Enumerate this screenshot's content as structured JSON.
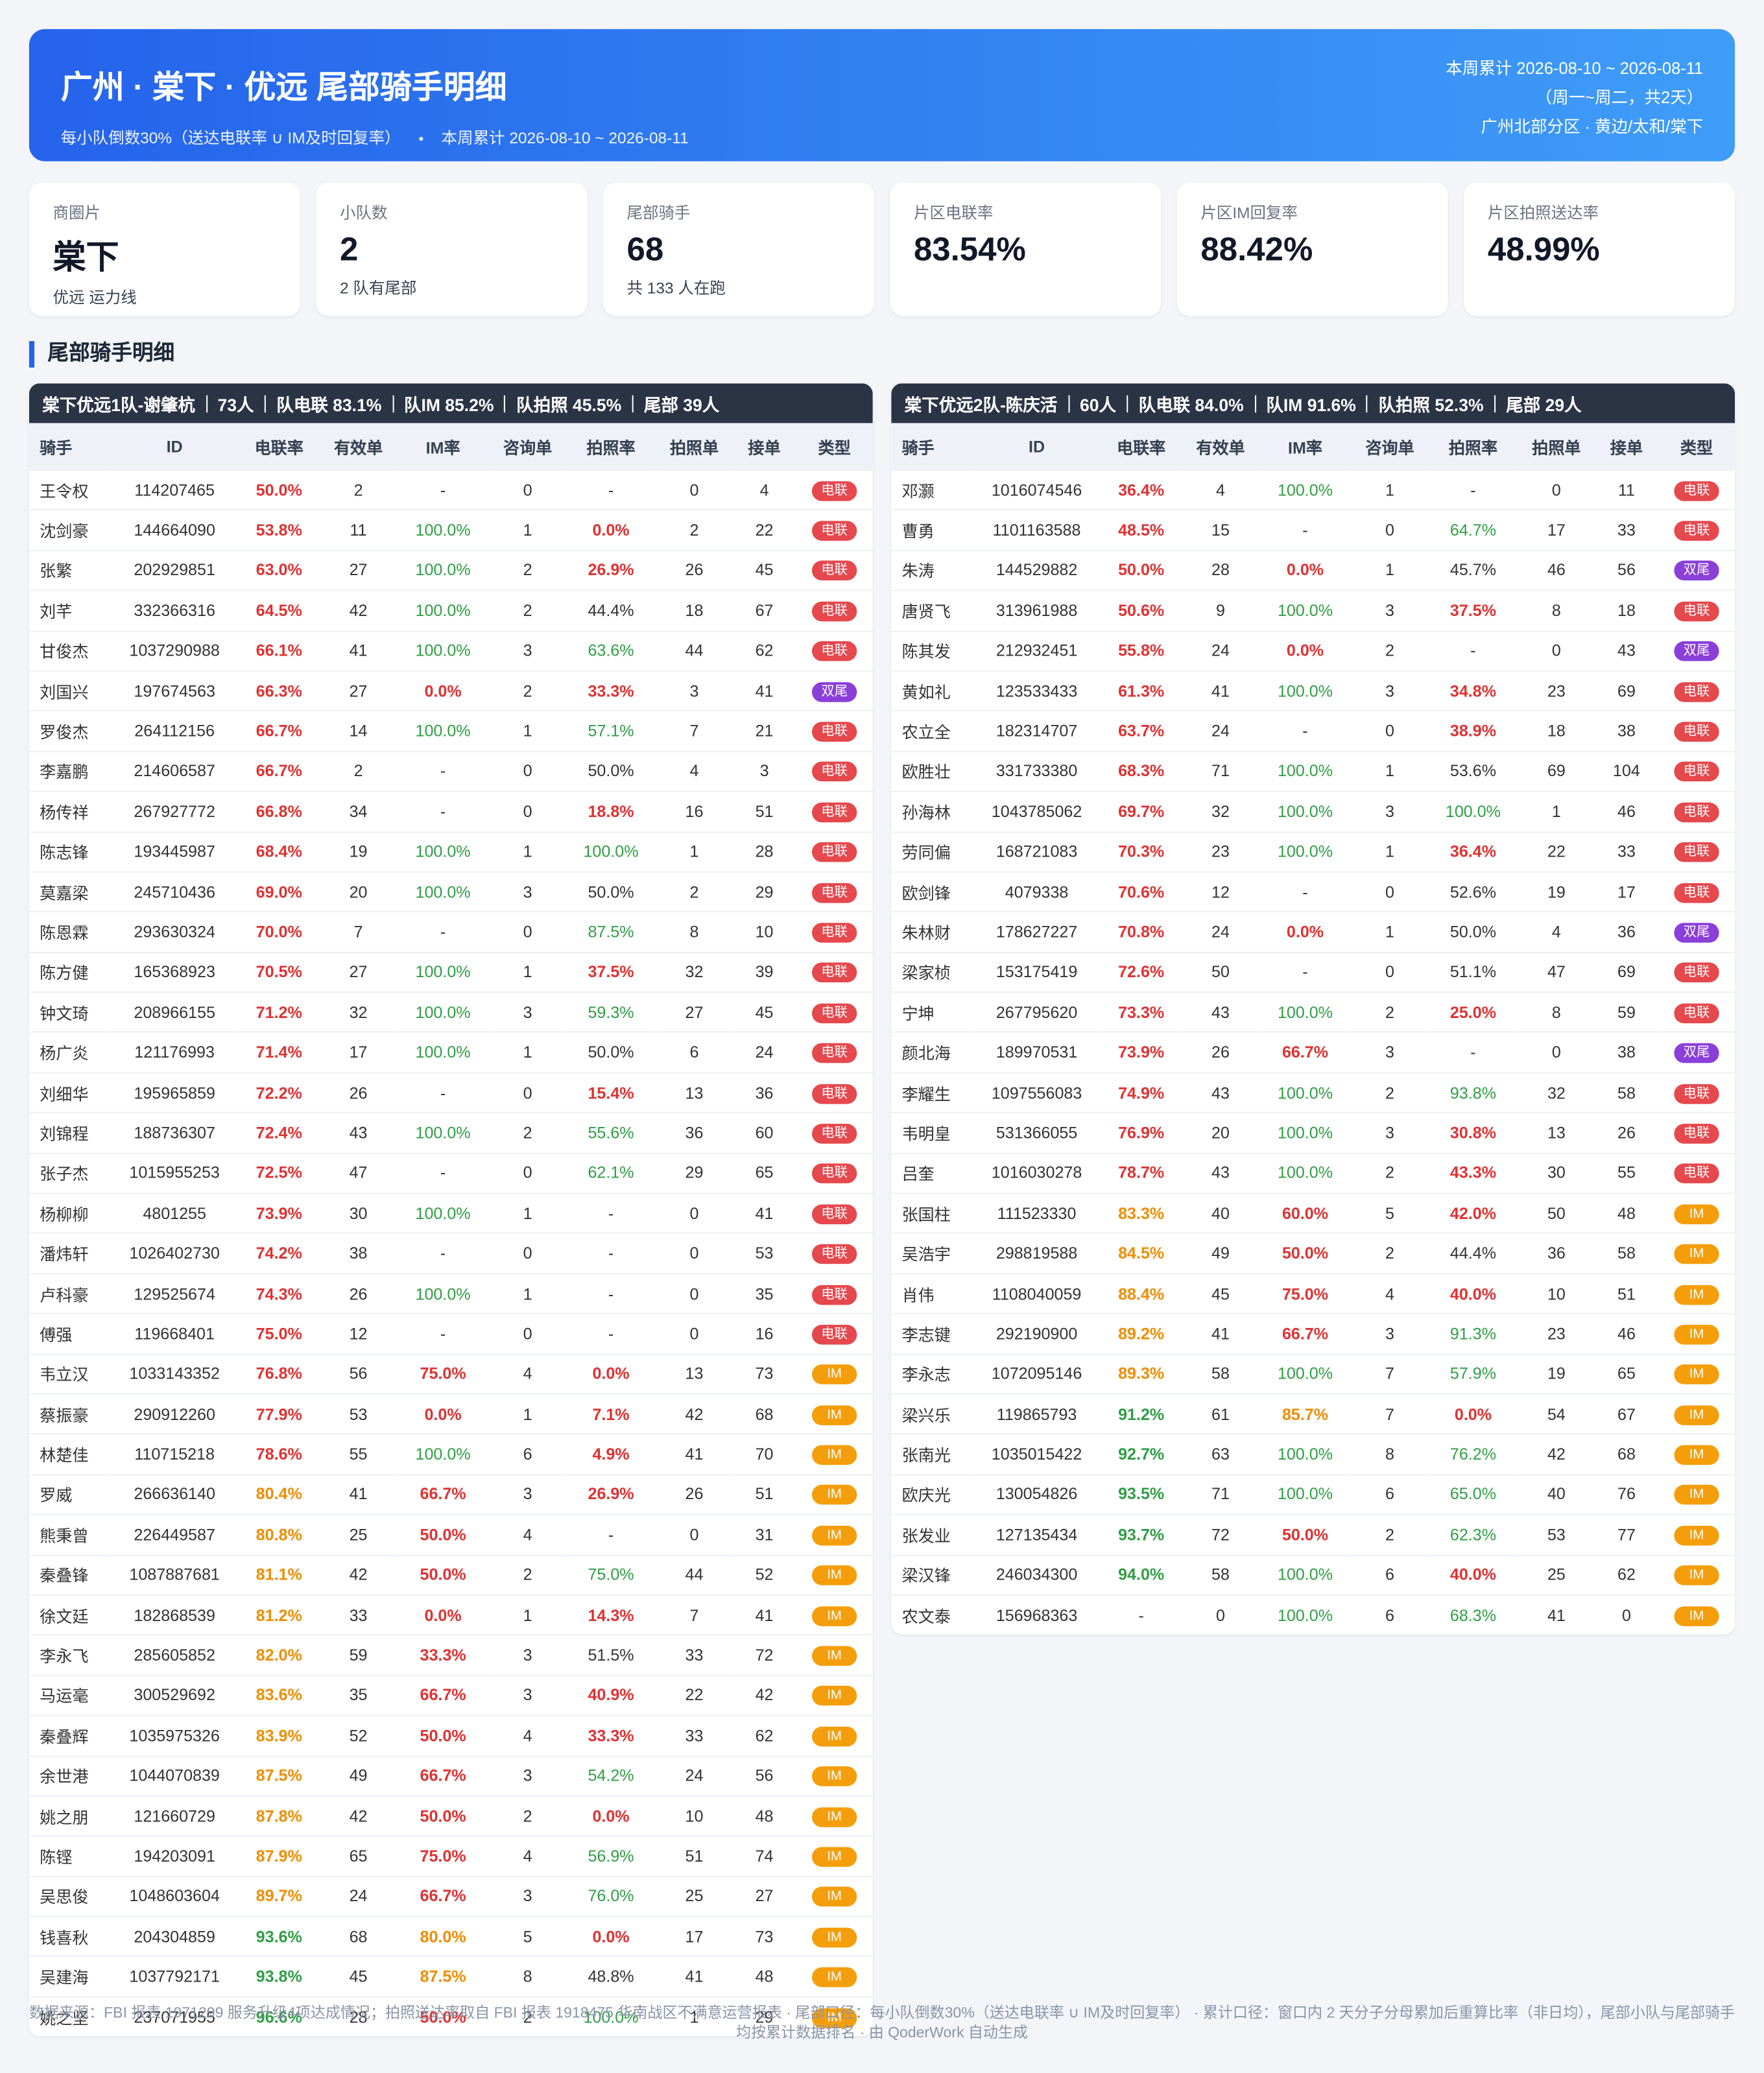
{
  "header": {
    "title": "广州 · 棠下 · 优远 尾部骑手明细",
    "subtitle": [
      "每小队倒数30%（送达电联率 ∪ IM及时回复率）",
      "本周累计 2026-08-10 ~ 2026-08-11"
    ],
    "right": [
      "本周累计 2026-08-10 ~ 2026-08-11",
      "（周一~周二，共2天）",
      "广州北部分区 · 黄边/太和/棠下"
    ]
  },
  "kpis": [
    {
      "label": "商圈片",
      "value": "棠下",
      "sub": "优远 运力线"
    },
    {
      "label": "小队数",
      "value": "2",
      "sub": "2 队有尾部"
    },
    {
      "label": "尾部骑手",
      "value": "68",
      "sub": "共 133 人在跑"
    },
    {
      "label": "片区电联率",
      "value": "83.54%"
    },
    {
      "label": "片区IM回复率",
      "value": "88.42%"
    },
    {
      "label": "片区拍照送达率",
      "value": "48.99%"
    }
  ],
  "section_title": "尾部骑手明细",
  "columns": [
    "骑手",
    "ID",
    "电联率",
    "有效单",
    "IM率",
    "咨询单",
    "拍照率",
    "拍照单",
    "接单",
    "类型"
  ],
  "teams": [
    {
      "summary": [
        "棠下优远1队-谢肇杭",
        "73人",
        "队电联 83.1%",
        "队IM 85.2%",
        "队拍照 45.5%",
        "尾部 39人"
      ],
      "rows": [
        [
          "王令权",
          "114207465",
          "50.0%",
          "2",
          "-",
          "0",
          "-",
          "0",
          "4",
          "电联"
        ],
        [
          "沈剑豪",
          "144664090",
          "53.8%",
          "11",
          "100.0%",
          "1",
          "0.0%",
          "2",
          "22",
          "电联"
        ],
        [
          "张繁",
          "202929851",
          "63.0%",
          "27",
          "100.0%",
          "2",
          "26.9%",
          "26",
          "45",
          "电联"
        ],
        [
          "刘芊",
          "332366316",
          "64.5%",
          "42",
          "100.0%",
          "2",
          "44.4%",
          "18",
          "67",
          "电联"
        ],
        [
          "甘俊杰",
          "1037290988",
          "66.1%",
          "41",
          "100.0%",
          "3",
          "63.6%",
          "44",
          "62",
          "电联"
        ],
        [
          "刘国兴",
          "197674563",
          "66.3%",
          "27",
          "0.0%",
          "2",
          "33.3%",
          "3",
          "41",
          "双尾"
        ],
        [
          "罗俊杰",
          "264112156",
          "66.7%",
          "14",
          "100.0%",
          "1",
          "57.1%",
          "7",
          "21",
          "电联"
        ],
        [
          "李嘉鹏",
          "214606587",
          "66.7%",
          "2",
          "-",
          "0",
          "50.0%",
          "4",
          "3",
          "电联"
        ],
        [
          "杨传祥",
          "267927772",
          "66.8%",
          "34",
          "-",
          "0",
          "18.8%",
          "16",
          "51",
          "电联"
        ],
        [
          "陈志锋",
          "193445987",
          "68.4%",
          "19",
          "100.0%",
          "1",
          "100.0%",
          "1",
          "28",
          "电联"
        ],
        [
          "莫嘉梁",
          "245710436",
          "69.0%",
          "20",
          "100.0%",
          "3",
          "50.0%",
          "2",
          "29",
          "电联"
        ],
        [
          "陈恩霖",
          "293630324",
          "70.0%",
          "7",
          "-",
          "0",
          "87.5%",
          "8",
          "10",
          "电联"
        ],
        [
          "陈方健",
          "165368923",
          "70.5%",
          "27",
          "100.0%",
          "1",
          "37.5%",
          "32",
          "39",
          "电联"
        ],
        [
          "钟文琦",
          "208966155",
          "71.2%",
          "32",
          "100.0%",
          "3",
          "59.3%",
          "27",
          "45",
          "电联"
        ],
        [
          "杨广炎",
          "121176993",
          "71.4%",
          "17",
          "100.0%",
          "1",
          "50.0%",
          "6",
          "24",
          "电联"
        ],
        [
          "刘细华",
          "195965859",
          "72.2%",
          "26",
          "-",
          "0",
          "15.4%",
          "13",
          "36",
          "电联"
        ],
        [
          "刘锦程",
          "188736307",
          "72.4%",
          "43",
          "100.0%",
          "2",
          "55.6%",
          "36",
          "60",
          "电联"
        ],
        [
          "张子杰",
          "1015955253",
          "72.5%",
          "47",
          "-",
          "0",
          "62.1%",
          "29",
          "65",
          "电联"
        ],
        [
          "杨柳柳",
          "4801255",
          "73.9%",
          "30",
          "100.0%",
          "1",
          "-",
          "0",
          "41",
          "电联"
        ],
        [
          "潘炜轩",
          "1026402730",
          "74.2%",
          "38",
          "-",
          "0",
          "-",
          "0",
          "53",
          "电联"
        ],
        [
          "卢科豪",
          "129525674",
          "74.3%",
          "26",
          "100.0%",
          "1",
          "-",
          "0",
          "35",
          "电联"
        ],
        [
          "傅强",
          "119668401",
          "75.0%",
          "12",
          "-",
          "0",
          "-",
          "0",
          "16",
          "电联"
        ],
        [
          "韦立汉",
          "1033143352",
          "76.8%",
          "56",
          "75.0%",
          "4",
          "0.0%",
          "13",
          "73",
          "IM"
        ],
        [
          "蔡振豪",
          "290912260",
          "77.9%",
          "53",
          "0.0%",
          "1",
          "7.1%",
          "42",
          "68",
          "IM"
        ],
        [
          "林楚佳",
          "110715218",
          "78.6%",
          "55",
          "100.0%",
          "6",
          "4.9%",
          "41",
          "70",
          "IM"
        ],
        [
          "罗威",
          "266636140",
          "80.4%",
          "41",
          "66.7%",
          "3",
          "26.9%",
          "26",
          "51",
          "IM"
        ],
        [
          "熊秉曾",
          "226449587",
          "80.8%",
          "25",
          "50.0%",
          "4",
          "-",
          "0",
          "31",
          "IM"
        ],
        [
          "秦叠锋",
          "1087887681",
          "81.1%",
          "42",
          "50.0%",
          "2",
          "75.0%",
          "44",
          "52",
          "IM"
        ],
        [
          "徐文廷",
          "182868539",
          "81.2%",
          "33",
          "0.0%",
          "1",
          "14.3%",
          "7",
          "41",
          "IM"
        ],
        [
          "李永飞",
          "285605852",
          "82.0%",
          "59",
          "33.3%",
          "3",
          "51.5%",
          "33",
          "72",
          "IM"
        ],
        [
          "马运毫",
          "300529692",
          "83.6%",
          "35",
          "66.7%",
          "3",
          "40.9%",
          "22",
          "42",
          "IM"
        ],
        [
          "秦叠辉",
          "1035975326",
          "83.9%",
          "52",
          "50.0%",
          "4",
          "33.3%",
          "33",
          "62",
          "IM"
        ],
        [
          "余世港",
          "1044070839",
          "87.5%",
          "49",
          "66.7%",
          "3",
          "54.2%",
          "24",
          "56",
          "IM"
        ],
        [
          "姚之朋",
          "121660729",
          "87.8%",
          "42",
          "50.0%",
          "2",
          "0.0%",
          "10",
          "48",
          "IM"
        ],
        [
          "陈铿",
          "194203091",
          "87.9%",
          "65",
          "75.0%",
          "4",
          "56.9%",
          "51",
          "74",
          "IM"
        ],
        [
          "吴思俊",
          "1048603604",
          "89.7%",
          "24",
          "66.7%",
          "3",
          "76.0%",
          "25",
          "27",
          "IM"
        ],
        [
          "钱喜秋",
          "204304859",
          "93.6%",
          "68",
          "80.0%",
          "5",
          "0.0%",
          "17",
          "73",
          "IM"
        ],
        [
          "吴建海",
          "1037792171",
          "93.8%",
          "45",
          "87.5%",
          "8",
          "48.8%",
          "41",
          "48",
          "IM"
        ],
        [
          "姚之坚",
          "237071955",
          "96.6%",
          "28",
          "50.0%",
          "2",
          "100.0%",
          "1",
          "29",
          "IM"
        ]
      ]
    },
    {
      "summary": [
        "棠下优远2队-陈庆活",
        "60人",
        "队电联 84.0%",
        "队IM 91.6%",
        "队拍照 52.3%",
        "尾部 29人"
      ],
      "rows": [
        [
          "邓灏",
          "1016074546",
          "36.4%",
          "4",
          "100.0%",
          "1",
          "-",
          "0",
          "11",
          "电联"
        ],
        [
          "曹勇",
          "1101163588",
          "48.5%",
          "15",
          "-",
          "0",
          "64.7%",
          "17",
          "33",
          "电联"
        ],
        [
          "朱涛",
          "144529882",
          "50.0%",
          "28",
          "0.0%",
          "1",
          "45.7%",
          "46",
          "56",
          "双尾"
        ],
        [
          "唐贤飞",
          "313961988",
          "50.6%",
          "9",
          "100.0%",
          "3",
          "37.5%",
          "8",
          "18",
          "电联"
        ],
        [
          "陈其发",
          "212932451",
          "55.8%",
          "24",
          "0.0%",
          "2",
          "-",
          "0",
          "43",
          "双尾"
        ],
        [
          "黄如礼",
          "123533433",
          "61.3%",
          "41",
          "100.0%",
          "3",
          "34.8%",
          "23",
          "69",
          "电联"
        ],
        [
          "农立全",
          "182314707",
          "63.7%",
          "24",
          "-",
          "0",
          "38.9%",
          "18",
          "38",
          "电联"
        ],
        [
          "欧胜壮",
          "331733380",
          "68.3%",
          "71",
          "100.0%",
          "1",
          "53.6%",
          "69",
          "104",
          "电联"
        ],
        [
          "孙海林",
          "1043785062",
          "69.7%",
          "32",
          "100.0%",
          "3",
          "100.0%",
          "1",
          "46",
          "电联"
        ],
        [
          "劳同偏",
          "168721083",
          "70.3%",
          "23",
          "100.0%",
          "1",
          "36.4%",
          "22",
          "33",
          "电联"
        ],
        [
          "欧剑锋",
          "4079338",
          "70.6%",
          "12",
          "-",
          "0",
          "52.6%",
          "19",
          "17",
          "电联"
        ],
        [
          "朱林财",
          "178627227",
          "70.8%",
          "24",
          "0.0%",
          "1",
          "50.0%",
          "4",
          "36",
          "双尾"
        ],
        [
          "梁家桢",
          "153175419",
          "72.6%",
          "50",
          "-",
          "0",
          "51.1%",
          "47",
          "69",
          "电联"
        ],
        [
          "宁坤",
          "267795620",
          "73.3%",
          "43",
          "100.0%",
          "2",
          "25.0%",
          "8",
          "59",
          "电联"
        ],
        [
          "颜北海",
          "189970531",
          "73.9%",
          "26",
          "66.7%",
          "3",
          "-",
          "0",
          "38",
          "双尾"
        ],
        [
          "李耀生",
          "1097556083",
          "74.9%",
          "43",
          "100.0%",
          "2",
          "93.8%",
          "32",
          "58",
          "电联"
        ],
        [
          "韦明皇",
          "531366055",
          "76.9%",
          "20",
          "100.0%",
          "3",
          "30.8%",
          "13",
          "26",
          "电联"
        ],
        [
          "吕奎",
          "1016030278",
          "78.7%",
          "43",
          "100.0%",
          "2",
          "43.3%",
          "30",
          "55",
          "电联"
        ],
        [
          "张国柱",
          "111523330",
          "83.3%",
          "40",
          "60.0%",
          "5",
          "42.0%",
          "50",
          "48",
          "IM"
        ],
        [
          "吴浩宇",
          "298819588",
          "84.5%",
          "49",
          "50.0%",
          "2",
          "44.4%",
          "36",
          "58",
          "IM"
        ],
        [
          "肖伟",
          "1108040059",
          "88.4%",
          "45",
          "75.0%",
          "4",
          "40.0%",
          "10",
          "51",
          "IM"
        ],
        [
          "李志键",
          "292190900",
          "89.2%",
          "41",
          "66.7%",
          "3",
          "91.3%",
          "23",
          "46",
          "IM"
        ],
        [
          "李永志",
          "1072095146",
          "89.3%",
          "58",
          "100.0%",
          "7",
          "57.9%",
          "19",
          "65",
          "IM"
        ],
        [
          "梁兴乐",
          "119865793",
          "91.2%",
          "61",
          "85.7%",
          "7",
          "0.0%",
          "54",
          "67",
          "IM"
        ],
        [
          "张南光",
          "1035015422",
          "92.7%",
          "63",
          "100.0%",
          "8",
          "76.2%",
          "42",
          "68",
          "IM"
        ],
        [
          "欧庆光",
          "130054826",
          "93.5%",
          "71",
          "100.0%",
          "6",
          "65.0%",
          "40",
          "76",
          "IM"
        ],
        [
          "张发业",
          "127135434",
          "93.7%",
          "72",
          "50.0%",
          "2",
          "62.3%",
          "53",
          "77",
          "IM"
        ],
        [
          "梁汉锋",
          "246034300",
          "94.0%",
          "58",
          "100.0%",
          "6",
          "40.0%",
          "25",
          "62",
          "IM"
        ],
        [
          "农文泰",
          "156968363",
          "-",
          "0",
          "100.0%",
          "6",
          "68.3%",
          "41",
          "0",
          "IM"
        ]
      ]
    }
  ],
  "footer": "数据来源：FBI 报表 1971299 服务升级4项达成情况；拍照送达率取自 FBI 报表 1918475 华南战区不满意运营报表 · 尾部口径：每小队倒数30%（送达电联率 ∪ IM及时回复率）   ·   累计口径：窗口内 2 天分子分母累加后重算比率（非日均），尾部小队与尾部骑手均按累计数据排名 · 由 QoderWork 自动生成"
}
